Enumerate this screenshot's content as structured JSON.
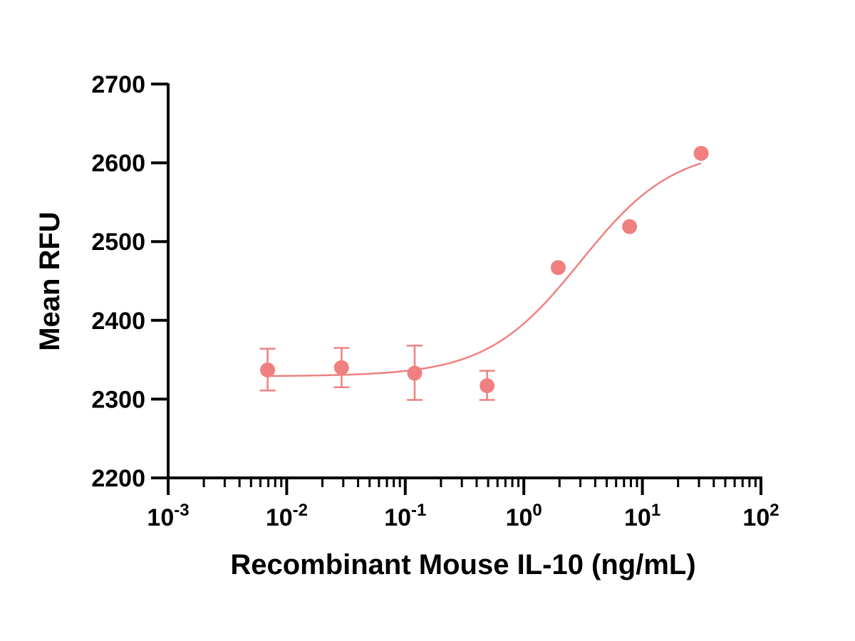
{
  "chart_data": {
    "type": "scatter",
    "title": "",
    "xlabel": "Recombinant Mouse IL-10 (ng/mL)",
    "ylabel": "Mean RFU",
    "xscale": "log",
    "xlim": [
      0.001,
      100
    ],
    "ylim": [
      2200,
      2700
    ],
    "x_ticks": [
      {
        "value": 0.001,
        "base": "10",
        "exp": "-3"
      },
      {
        "value": 0.01,
        "base": "10",
        "exp": "-2"
      },
      {
        "value": 0.1,
        "base": "10",
        "exp": "-1"
      },
      {
        "value": 1,
        "base": "10",
        "exp": "0"
      },
      {
        "value": 10,
        "base": "10",
        "exp": "1"
      },
      {
        "value": 100,
        "base": "10",
        "exp": "2"
      }
    ],
    "y_ticks": [
      2200,
      2300,
      2400,
      2500,
      2600,
      2700
    ],
    "grid": false,
    "legend": "none",
    "color": "#f08080",
    "points": [
      {
        "x": 0.0069,
        "y": 2337,
        "err_low": 2311,
        "err_high": 2364
      },
      {
        "x": 0.029,
        "y": 2340,
        "err_low": 2315,
        "err_high": 2365
      },
      {
        "x": 0.12,
        "y": 2333,
        "err_low": 2299,
        "err_high": 2368
      },
      {
        "x": 0.49,
        "y": 2317,
        "err_low": 2299,
        "err_high": 2336
      },
      {
        "x": 1.95,
        "y": 2467
      },
      {
        "x": 7.8,
        "y": 2519
      },
      {
        "x": 31.3,
        "y": 2612
      }
    ],
    "fit": {
      "model": "4PL",
      "bottom": 2329,
      "top": 2620,
      "ec50": 3.0,
      "hill": 1.1,
      "x_range": [
        0.0069,
        31.3
      ]
    }
  }
}
